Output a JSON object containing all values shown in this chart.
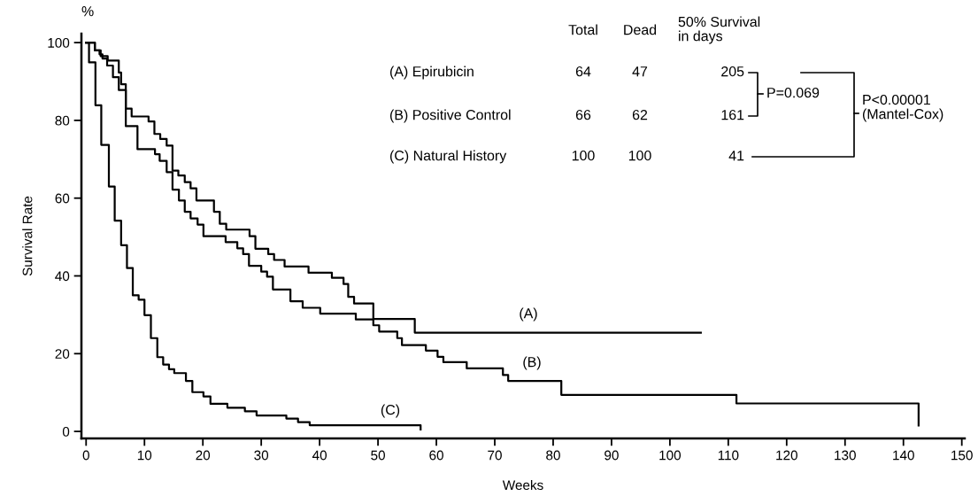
{
  "chart_data": {
    "type": "step",
    "xlabel": "Weeks",
    "ylabel": "Survival Rate",
    "xlim": [
      -0.8,
      150.5
    ],
    "ylim": [
      -1.8,
      102.3
    ],
    "xticks": [
      0,
      10,
      20,
      30,
      40,
      50,
      60,
      70,
      80,
      90,
      100,
      110,
      120,
      130,
      140,
      150
    ],
    "yticks": [
      0,
      20,
      40,
      60,
      80,
      100
    ],
    "grid": false,
    "legend": false,
    "marker": "none",
    "line_style": "solid",
    "series": [
      {
        "color": "#000000",
        "x": [
          0,
          1.5,
          2.5,
          3.7,
          5.6,
          6.0,
          6.8,
          7.8,
          10.7,
          11.7,
          12.7,
          13.8,
          14.8,
          15.8,
          16.9,
          17.9,
          18.9,
          21.9,
          22.9,
          24.0,
          28.0,
          29.0,
          31.2,
          32.2,
          34.0,
          38.1,
          42.1,
          44.1,
          44.9,
          45.9,
          49.2,
          56.3,
          105.3
        ],
        "values": [
          100,
          98,
          96.5,
          95.4,
          92.3,
          89.3,
          83.0,
          81.0,
          79.7,
          76.5,
          75.2,
          73.5,
          67.1,
          65.8,
          64.1,
          62.5,
          59.4,
          56.5,
          53.4,
          51.9,
          50.2,
          47.0,
          45.6,
          44.1,
          42.4,
          40.8,
          39.5,
          37.9,
          34.6,
          32.9,
          28.9,
          25.4,
          25.4
        ]
      },
      {
        "color": "#000000",
        "x": [
          0,
          1.5,
          2.3,
          2.8,
          3.6,
          4.6,
          5.6,
          6.8,
          8.8,
          11.8,
          12.6,
          13.8,
          14.8,
          15.9,
          16.9,
          17.9,
          19.1,
          20.1,
          23.9,
          25.9,
          26.9,
          27.9,
          30.0,
          31.0,
          32.0,
          35.0,
          37.1,
          40.1,
          46.2,
          49.2,
          50.2,
          53.3,
          54.1,
          58.2,
          60.2,
          61.2,
          65.2,
          71.4,
          72.3,
          81.4,
          111.4,
          142.6,
          142.6
        ],
        "values": [
          100,
          98.0,
          97.0,
          95.9,
          94.1,
          91.1,
          87.8,
          78.5,
          72.6,
          71.3,
          69.6,
          66.7,
          62.2,
          59.4,
          56.5,
          54.8,
          53.2,
          50.2,
          48.7,
          47.1,
          45.6,
          42.6,
          41.1,
          39.8,
          36.5,
          33.5,
          31.8,
          30.3,
          28.8,
          27.3,
          25.7,
          24.0,
          22.2,
          20.8,
          19.2,
          17.8,
          16.2,
          14.5,
          13.0,
          9.4,
          7.2,
          4.2,
          1.5
        ]
      },
      {
        "color": "#000000",
        "x": [
          0,
          0.5,
          1.6,
          2.6,
          3.9,
          4.9,
          6.0,
          7.0,
          8.0,
          9.0,
          10.0,
          11.1,
          12.2,
          13.2,
          14.2,
          15.1,
          17.1,
          18.2,
          20.1,
          21.3,
          24.2,
          27.2,
          29.2,
          34.3,
          36.3,
          38.3,
          57.3,
          57.3
        ],
        "values": [
          100,
          94.9,
          83.9,
          73.7,
          63.0,
          54.2,
          47.9,
          42.0,
          35.0,
          33.9,
          29.9,
          24.0,
          19.1,
          17.2,
          16.0,
          15.0,
          13.0,
          10.1,
          9.0,
          7.1,
          6.1,
          5.2,
          4.1,
          3.3,
          2.4,
          1.6,
          1.6,
          0.5
        ]
      }
    ],
    "annotations": [
      "(A)",
      "(B)",
      "(C)",
      "%",
      "Total",
      "Dead",
      "50% Survival\nin days",
      "(A) Epirubicin",
      "64",
      "47",
      "205",
      "(B) Positive Control",
      "66",
      "62",
      "161",
      "(C) Natural History",
      "100",
      "100",
      "41",
      "P=0.069",
      "P<0.00001\n(Mantel-Cox)"
    ]
  }
}
